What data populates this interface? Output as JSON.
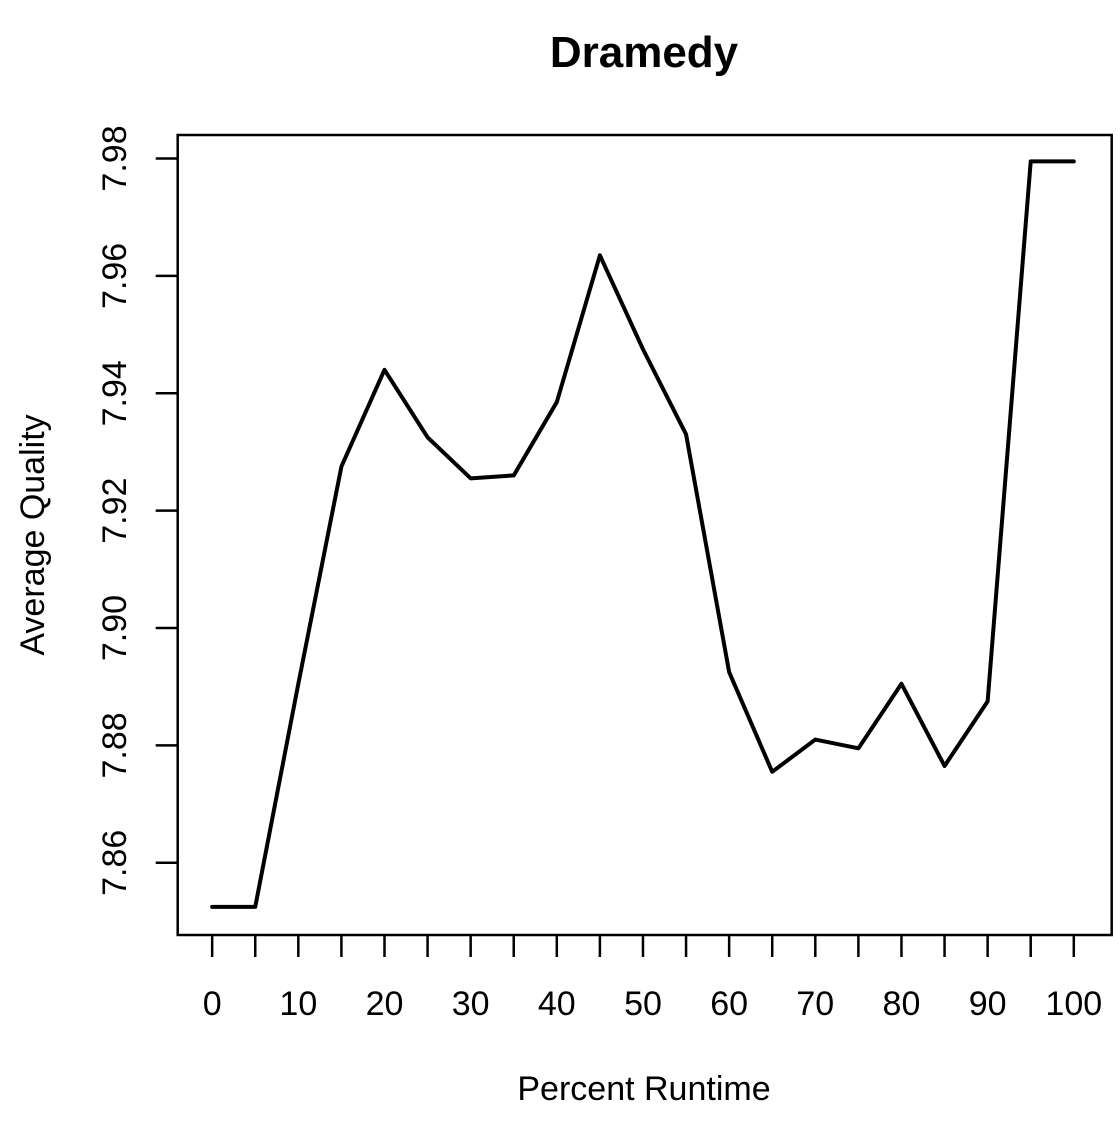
{
  "chart_data": {
    "type": "line",
    "title": "Dramedy",
    "xlabel": "Percent Runtime",
    "ylabel": "Average Quality",
    "grid": false,
    "legend": "none",
    "line_color": "#000000",
    "background_color": "#ffffff",
    "xlim": [
      -4,
      104.4
    ],
    "ylim": [
      7.8477,
      7.984
    ],
    "x": [
      0,
      5,
      10,
      15,
      20,
      25,
      30,
      35,
      40,
      45,
      50,
      55,
      60,
      65,
      70,
      75,
      80,
      85,
      90,
      95,
      100
    ],
    "series": [
      {
        "name": "Average Quality",
        "values": [
          7.8525,
          7.8525,
          7.8905,
          7.9275,
          7.944,
          7.9325,
          7.9255,
          7.926,
          7.9385,
          7.9635,
          7.9475,
          7.933,
          7.8925,
          7.8755,
          7.881,
          7.8795,
          7.8905,
          7.8765,
          7.8875,
          7.9795,
          7.9795
        ]
      }
    ],
    "x_ticks": [
      0,
      5,
      10,
      15,
      20,
      25,
      30,
      35,
      40,
      45,
      50,
      55,
      60,
      65,
      70,
      75,
      80,
      85,
      90,
      95,
      100
    ],
    "x_tick_labels": [
      {
        "pos": 0,
        "label": "0"
      },
      {
        "pos": 10,
        "label": "10"
      },
      {
        "pos": 20,
        "label": "20"
      },
      {
        "pos": 30,
        "label": "30"
      },
      {
        "pos": 40,
        "label": "40"
      },
      {
        "pos": 50,
        "label": "50"
      },
      {
        "pos": 60,
        "label": "60"
      },
      {
        "pos": 70,
        "label": "70"
      },
      {
        "pos": 80,
        "label": "80"
      },
      {
        "pos": 90,
        "label": "90"
      },
      {
        "pos": 100,
        "label": "100"
      }
    ],
    "y_ticks": [
      7.86,
      7.88,
      7.9,
      7.92,
      7.94,
      7.96,
      7.98
    ],
    "y_tick_labels": [
      {
        "pos": 7.86,
        "label": "7.86"
      },
      {
        "pos": 7.88,
        "label": "7.88"
      },
      {
        "pos": 7.9,
        "label": "7.90"
      },
      {
        "pos": 7.92,
        "label": "7.92"
      },
      {
        "pos": 7.94,
        "label": "7.94"
      },
      {
        "pos": 7.96,
        "label": "7.96"
      },
      {
        "pos": 7.98,
        "label": "7.98"
      }
    ]
  }
}
